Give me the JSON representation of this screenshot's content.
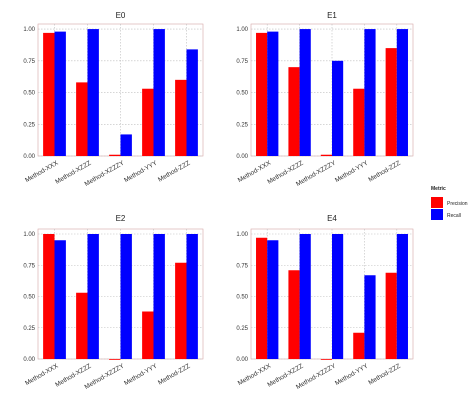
{
  "colors": {
    "precision": "#ff0000",
    "recall": "#0000ff",
    "grid": "#bdbdbd",
    "border": "#d6a7a7"
  },
  "legend": {
    "title": "Metric",
    "items": [
      {
        "label": "Precision",
        "color": "#ff0000"
      },
      {
        "label": "Recall",
        "color": "#0000ff"
      }
    ]
  },
  "chart_data": [
    {
      "type": "bar",
      "title": "E0",
      "categories": [
        "Method-XXX",
        "Method-XZZZ",
        "Method-XZZZY",
        "Method-YYY",
        "Method-ZZZ"
      ],
      "series": [
        {
          "name": "Precision",
          "values": [
            0.97,
            0.58,
            0.01,
            0.53,
            0.6
          ]
        },
        {
          "name": "Recall",
          "values": [
            0.98,
            1.0,
            0.17,
            1.0,
            0.84
          ]
        }
      ],
      "yticks": [
        "0.00",
        "0.25",
        "0.50",
        "0.75",
        "1.00"
      ],
      "ylim": [
        0,
        1.04
      ],
      "grid": true
    },
    {
      "type": "bar",
      "title": "E1",
      "categories": [
        "Method-XXX",
        "Method-XZZZ",
        "Method-XZZZY",
        "Method-YYY",
        "Method-ZZZ"
      ],
      "series": [
        {
          "name": "Precision",
          "values": [
            0.97,
            0.7,
            0.01,
            0.53,
            0.85
          ]
        },
        {
          "name": "Recall",
          "values": [
            0.98,
            1.0,
            0.75,
            1.0,
            1.0
          ]
        }
      ],
      "yticks": [
        "0.00",
        "0.25",
        "0.50",
        "0.75",
        "1.00"
      ],
      "ylim": [
        0,
        1.04
      ],
      "grid": true
    },
    {
      "type": "bar",
      "title": "E2",
      "categories": [
        "Method-XXX",
        "Method-XZZZ",
        "Method-XZZZY",
        "Method-YYY",
        "Method-ZZZ"
      ],
      "series": [
        {
          "name": "Precision",
          "values": [
            1.0,
            0.53,
            0.0,
            0.38,
            0.77
          ]
        },
        {
          "name": "Recall",
          "values": [
            0.95,
            1.0,
            1.0,
            1.0,
            1.0
          ]
        }
      ],
      "yticks": [
        "0.00",
        "0.25",
        "0.50",
        "0.75",
        "1.00"
      ],
      "ylim": [
        0,
        1.04
      ],
      "grid": true
    },
    {
      "type": "bar",
      "title": "E4",
      "categories": [
        "Method-XXX",
        "Method-XZZZ",
        "Method-XZZZY",
        "Method-YYY",
        "Method-ZZZ"
      ],
      "series": [
        {
          "name": "Precision",
          "values": [
            0.97,
            0.71,
            0.0,
            0.21,
            0.69
          ]
        },
        {
          "name": "Recall",
          "values": [
            0.95,
            1.0,
            1.0,
            0.67,
            1.0
          ]
        }
      ],
      "yticks": [
        "0.00",
        "0.25",
        "0.50",
        "0.75",
        "1.00"
      ],
      "ylim": [
        0,
        1.04
      ],
      "grid": true
    }
  ]
}
